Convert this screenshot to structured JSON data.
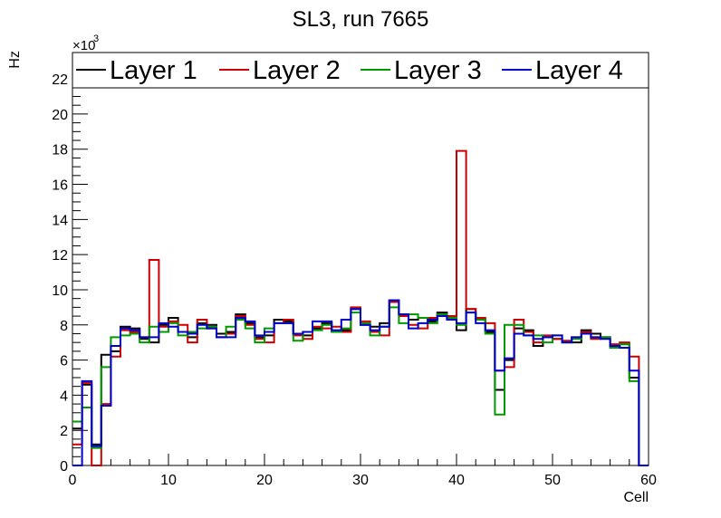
{
  "chart_data": {
    "type": "histogram-step",
    "title": "SL3, run 7665",
    "xlabel": "Cell",
    "ylabel": "Hz",
    "y_exponent_label": "×10",
    "y_exponent_power": "3",
    "xlim": [
      0,
      60
    ],
    "ylim": [
      0,
      23.5
    ],
    "x_ticks": [
      0,
      10,
      20,
      30,
      40,
      50,
      60
    ],
    "y_ticks": [
      0,
      2,
      4,
      6,
      8,
      10,
      12,
      14,
      16,
      18,
      20,
      22
    ],
    "bin_width": 1,
    "legend_placement": "top",
    "series": [
      {
        "name": "Layer 1",
        "color": "#000000",
        "values": [
          2.1,
          4.6,
          1.2,
          6.3,
          6.5,
          7.9,
          7.8,
          7.2,
          7.0,
          8.0,
          8.4,
          7.6,
          7.3,
          8.1,
          8.0,
          7.5,
          7.6,
          8.6,
          8.1,
          7.3,
          7.4,
          8.3,
          8.2,
          7.5,
          7.4,
          7.8,
          8.1,
          7.6,
          7.7,
          8.9,
          8.0,
          7.9,
          8.1,
          9.4,
          8.6,
          8.3,
          8.4,
          8.2,
          8.7,
          8.5,
          7.7,
          8.9,
          8.3,
          7.6,
          4.3,
          6.0,
          7.8,
          7.7,
          6.8,
          7.3,
          7.2,
          7.0,
          7.0,
          7.7,
          7.5,
          7.3,
          6.8,
          6.9,
          5.0,
          0
        ]
      },
      {
        "name": "Layer 2",
        "color": "#cc0000",
        "values": [
          1.2,
          4.7,
          0,
          3.5,
          6.2,
          7.7,
          7.6,
          7.3,
          11.7,
          7.9,
          8.2,
          8.0,
          7.0,
          8.3,
          7.8,
          7.3,
          7.5,
          8.5,
          8.0,
          7.2,
          7.0,
          8.1,
          8.3,
          7.4,
          7.2,
          7.9,
          7.8,
          7.9,
          7.6,
          9.0,
          8.2,
          7.6,
          7.4,
          9.3,
          8.5,
          8.0,
          7.8,
          8.4,
          8.6,
          8.5,
          17.9,
          8.9,
          8.4,
          8.1,
          5.4,
          5.6,
          8.3,
          7.6,
          7.0,
          7.4,
          7.2,
          7.1,
          7.3,
          7.6,
          7.2,
          7.3,
          6.9,
          7.0,
          6.2,
          0
        ]
      },
      {
        "name": "Layer 3",
        "color": "#009900",
        "values": [
          2.5,
          3.3,
          1.0,
          5.6,
          7.3,
          7.4,
          7.5,
          7.0,
          7.9,
          7.6,
          8.1,
          7.4,
          7.6,
          7.8,
          7.9,
          7.3,
          7.9,
          8.3,
          7.8,
          7.0,
          7.8,
          8.1,
          8.1,
          7.1,
          7.6,
          7.7,
          8.0,
          7.6,
          7.8,
          8.7,
          8.1,
          7.4,
          7.9,
          9.0,
          8.1,
          8.6,
          8.4,
          8.1,
          8.6,
          8.4,
          8.0,
          8.7,
          8.3,
          7.5,
          2.9,
          8.0,
          8.0,
          7.4,
          7.4,
          7.0,
          7.4,
          7.0,
          7.2,
          7.5,
          7.3,
          7.3,
          6.7,
          6.9,
          4.8,
          0
        ]
      },
      {
        "name": "Layer 4",
        "color": "#0000cc",
        "values": [
          0,
          4.8,
          1.1,
          3.4,
          6.8,
          7.8,
          7.7,
          7.3,
          7.3,
          8.1,
          7.9,
          7.6,
          7.5,
          8.0,
          7.8,
          7.3,
          7.3,
          8.4,
          8.2,
          7.4,
          7.6,
          8.1,
          8.1,
          7.5,
          7.6,
          8.2,
          8.2,
          7.7,
          8.3,
          8.9,
          8.0,
          7.7,
          7.9,
          9.4,
          8.6,
          7.8,
          8.1,
          8.3,
          8.5,
          8.3,
          8.1,
          8.7,
          8.1,
          7.7,
          5.4,
          6.1,
          7.5,
          7.4,
          7.2,
          7.3,
          7.4,
          7.0,
          7.3,
          7.5,
          7.3,
          7.2,
          6.8,
          6.7,
          5.4,
          0
        ]
      }
    ]
  }
}
